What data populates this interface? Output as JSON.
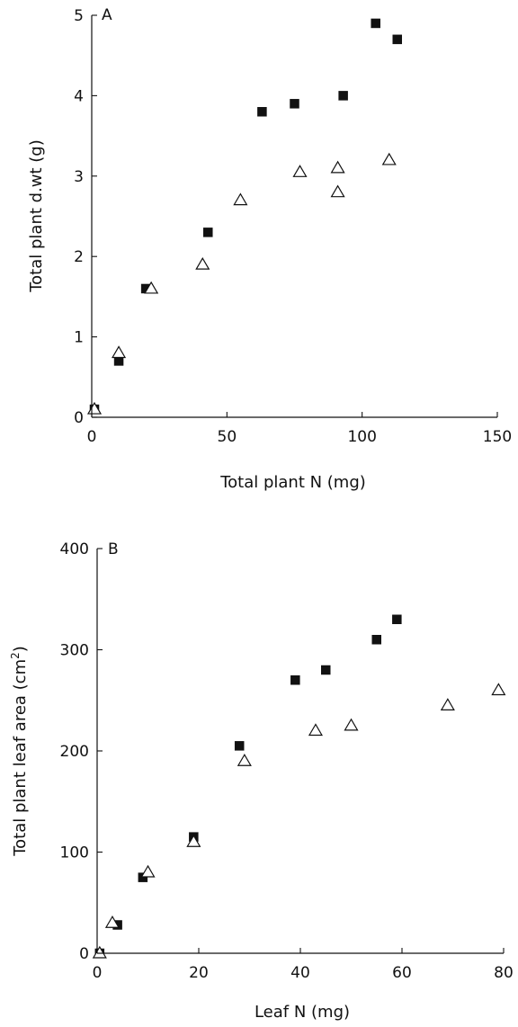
{
  "chart_data": [
    {
      "type": "scatter",
      "panel_label": "A",
      "xlabel": "Total plant N (mg)",
      "ylabel": "Total plant d.wt (g)",
      "xlim": [
        0,
        150
      ],
      "ylim": [
        0,
        5
      ],
      "x_ticks": [
        0,
        50,
        100,
        150
      ],
      "y_ticks": [
        0,
        1,
        2,
        3,
        4,
        5
      ],
      "legend": "none",
      "grid": false,
      "series": [
        {
          "marker": "filled-square",
          "color": "#111111",
          "points": [
            [
              1,
              0.1
            ],
            [
              10,
              0.7
            ],
            [
              20,
              1.6
            ],
            [
              43,
              2.3
            ],
            [
              63,
              3.8
            ],
            [
              75,
              3.9
            ],
            [
              93,
              4.0
            ],
            [
              105,
              4.9
            ],
            [
              113,
              4.7
            ]
          ]
        },
        {
          "marker": "open-triangle",
          "color": "#111111",
          "points": [
            [
              1,
              0.1
            ],
            [
              10,
              0.8
            ],
            [
              22,
              1.6
            ],
            [
              41,
              1.9
            ],
            [
              55,
              2.7
            ],
            [
              77,
              3.05
            ],
            [
              91,
              3.1
            ],
            [
              91,
              2.8
            ],
            [
              110,
              3.2
            ]
          ]
        }
      ]
    },
    {
      "type": "scatter",
      "panel_label": "B",
      "xlabel": "Leaf N (mg)",
      "ylabel": "Total plant leaf area (cm",
      "ylabel_superscript": "2",
      "ylabel_suffix": ")",
      "xlim": [
        0,
        80
      ],
      "ylim": [
        0,
        400
      ],
      "x_ticks": [
        0,
        20,
        40,
        60,
        80
      ],
      "y_ticks": [
        0,
        100,
        200,
        300,
        400
      ],
      "legend": "none",
      "grid": false,
      "series": [
        {
          "marker": "filled-square",
          "color": "#111111",
          "points": [
            [
              0.5,
              0
            ],
            [
              4,
              28
            ],
            [
              9,
              75
            ],
            [
              19,
              115
            ],
            [
              28,
              205
            ],
            [
              39,
              270
            ],
            [
              45,
              280
            ],
            [
              55,
              310
            ],
            [
              59,
              330
            ]
          ]
        },
        {
          "marker": "open-triangle",
          "color": "#111111",
          "points": [
            [
              0.5,
              0
            ],
            [
              3,
              30
            ],
            [
              10,
              80
            ],
            [
              19,
              110
            ],
            [
              29,
              190
            ],
            [
              43,
              220
            ],
            [
              50,
              225
            ],
            [
              69,
              245
            ],
            [
              79,
              260
            ]
          ]
        }
      ]
    }
  ]
}
